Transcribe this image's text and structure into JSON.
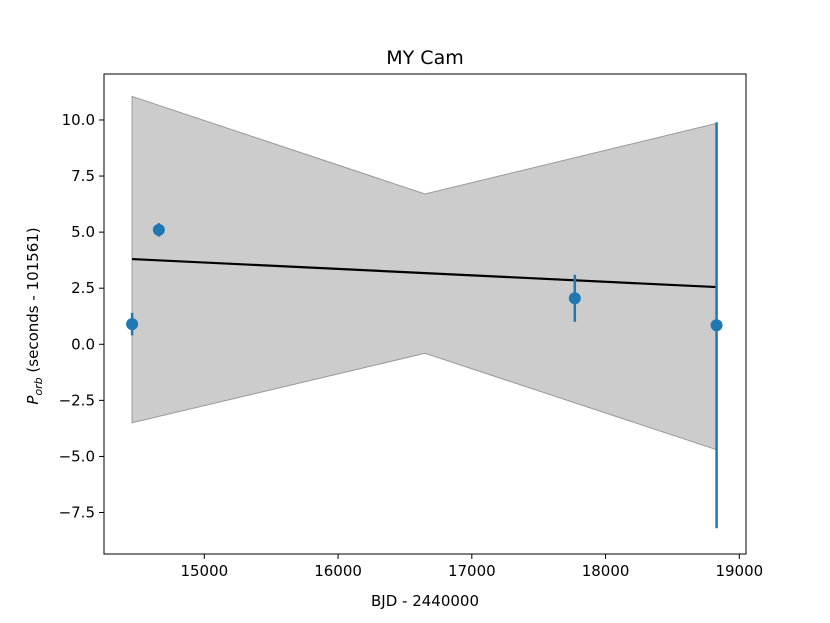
{
  "chart_data": {
    "type": "scatter",
    "title": "MY Cam",
    "xlabel": "BJD - 2440000",
    "ylabel_symbol": "P",
    "ylabel_subscript": "orb",
    "ylabel_rest": " (seconds - 101561)",
    "xlim": [
      14250,
      19050
    ],
    "ylim": [
      -9.35,
      12.05
    ],
    "xticks": [
      15000,
      16000,
      17000,
      18000,
      19000
    ],
    "yticks": [
      -7.5,
      -5.0,
      -2.5,
      0.0,
      2.5,
      5.0,
      7.5,
      10.0
    ],
    "xtick_labels": [
      "15000",
      "16000",
      "17000",
      "18000",
      "19000"
    ],
    "ytick_labels": [
      "−7.5",
      "−5.0",
      "−2.5",
      "0.0",
      "2.5",
      "5.0",
      "7.5",
      "10.0"
    ],
    "grid": false,
    "points": [
      {
        "x": 14460,
        "y": 0.9,
        "yerr_low": 0.5,
        "yerr_high": 0.5
      },
      {
        "x": 14660,
        "y": 5.1,
        "yerr_low": 0.3,
        "yerr_high": 0.3
      },
      {
        "x": 17770,
        "y": 2.05,
        "yerr_low": 1.05,
        "yerr_high": 1.05
      },
      {
        "x": 18830,
        "y": 0.85,
        "yerr_low": 9.05,
        "yerr_high": 9.05
      }
    ],
    "fit_line": {
      "x": [
        14460,
        18830
      ],
      "y": [
        3.8,
        2.55
      ]
    },
    "confidence_band": {
      "x": [
        14460,
        16650,
        18830
      ],
      "upper": [
        11.05,
        6.7,
        9.85
      ],
      "lower": [
        -3.5,
        -0.4,
        -4.7
      ]
    },
    "colors": {
      "points": "#1f77b4",
      "fit_line": "#000000",
      "band_fill": "#cccccc",
      "band_edge": "#999999"
    }
  }
}
